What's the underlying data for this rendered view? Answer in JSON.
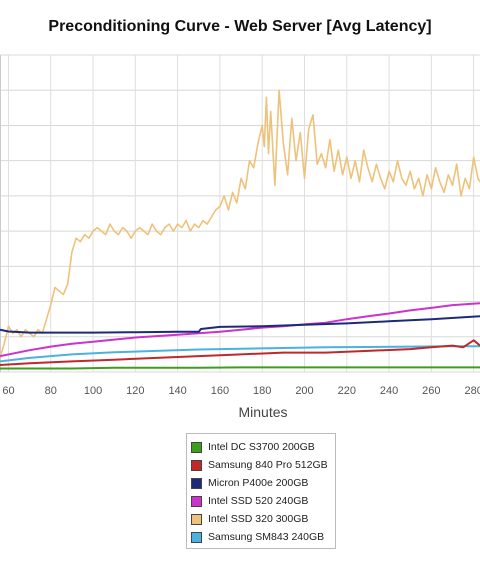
{
  "chart_data": {
    "type": "line",
    "title": "Preconditioning Curve - Web Server [Avg Latency]",
    "xlabel": "Minutes",
    "ylabel": "",
    "xlim": [
      56,
      283
    ],
    "ylim": [
      0,
      9
    ],
    "x_ticks": [
      60,
      80,
      100,
      120,
      140,
      160,
      180,
      200,
      220,
      240,
      260,
      280
    ],
    "grid": true,
    "legend_position": "bottom",
    "series": [
      {
        "name": "Intel DC S3700 200GB",
        "color": "#3d9e1c",
        "x": [
          56,
          70,
          90,
          110,
          130,
          150,
          170,
          190,
          210,
          230,
          250,
          270,
          283
        ],
        "y": [
          0.1,
          0.1,
          0.1,
          0.12,
          0.12,
          0.12,
          0.13,
          0.13,
          0.13,
          0.13,
          0.13,
          0.13,
          0.13
        ]
      },
      {
        "name": "Samsung 840 Pro 512GB",
        "color": "#c0282a",
        "x": [
          56,
          70,
          90,
          110,
          130,
          150,
          170,
          190,
          210,
          230,
          250,
          260,
          270,
          275,
          280,
          283
        ],
        "y": [
          0.2,
          0.25,
          0.3,
          0.35,
          0.4,
          0.45,
          0.5,
          0.55,
          0.55,
          0.6,
          0.65,
          0.7,
          0.75,
          0.7,
          0.9,
          0.75
        ]
      },
      {
        "name": "Micron P400e 200GB",
        "color": "#1c2a7a",
        "x": [
          56,
          60,
          70,
          80,
          100,
          120,
          140,
          150,
          151,
          160,
          180,
          200,
          220,
          240,
          260,
          283
        ],
        "y": [
          1.2,
          1.15,
          1.12,
          1.12,
          1.12,
          1.13,
          1.14,
          1.14,
          1.22,
          1.28,
          1.3,
          1.34,
          1.38,
          1.44,
          1.5,
          1.58
        ]
      },
      {
        "name": "Intel SSD 520 240GB",
        "color": "#cc33cc",
        "x": [
          56,
          70,
          80,
          90,
          100,
          110,
          120,
          130,
          140,
          150,
          160,
          170,
          180,
          190,
          200,
          210,
          220,
          230,
          240,
          250,
          260,
          270,
          283
        ],
        "y": [
          0.45,
          0.62,
          0.72,
          0.8,
          0.86,
          0.92,
          0.98,
          1.02,
          1.06,
          1.1,
          1.14,
          1.2,
          1.26,
          1.3,
          1.35,
          1.4,
          1.5,
          1.58,
          1.66,
          1.75,
          1.82,
          1.9,
          1.95
        ]
      },
      {
        "name": "Intel SSD 320 300GB",
        "color": "#eec27a",
        "x": [
          56,
          58,
          60,
          62,
          64,
          66,
          68,
          70,
          72,
          74,
          76,
          78,
          80,
          82,
          84,
          86,
          88,
          90,
          92,
          94,
          96,
          98,
          100,
          102,
          104,
          106,
          108,
          110,
          112,
          114,
          116,
          118,
          120,
          122,
          124,
          126,
          128,
          130,
          132,
          134,
          136,
          138,
          140,
          142,
          144,
          146,
          148,
          150,
          152,
          154,
          156,
          158,
          160,
          162,
          164,
          166,
          168,
          170,
          172,
          174,
          176,
          178,
          180,
          181,
          182,
          183,
          184,
          186,
          188,
          190,
          192,
          194,
          196,
          198,
          200,
          202,
          204,
          206,
          208,
          210,
          212,
          214,
          216,
          218,
          220,
          222,
          224,
          226,
          228,
          230,
          232,
          234,
          236,
          238,
          240,
          242,
          244,
          246,
          248,
          250,
          252,
          254,
          256,
          258,
          260,
          262,
          264,
          266,
          268,
          270,
          272,
          274,
          276,
          278,
          280,
          282,
          283
        ],
        "y": [
          0.4,
          0.8,
          1.3,
          1.1,
          1.2,
          1.0,
          1.2,
          1.1,
          1.0,
          1.2,
          1.1,
          1.5,
          1.9,
          2.4,
          2.3,
          2.2,
          2.5,
          3.4,
          3.8,
          3.7,
          3.9,
          3.8,
          4.0,
          4.1,
          4.0,
          3.9,
          4.2,
          4.0,
          3.9,
          4.1,
          4.0,
          3.8,
          4.0,
          4.1,
          4.0,
          3.9,
          4.2,
          4.0,
          3.9,
          4.1,
          4.2,
          4.0,
          4.2,
          4.1,
          4.3,
          4.0,
          4.2,
          4.1,
          4.3,
          4.2,
          4.4,
          4.6,
          4.7,
          5.0,
          4.6,
          5.1,
          4.8,
          5.5,
          5.2,
          6.0,
          5.8,
          6.5,
          7.0,
          6.4,
          7.8,
          6.2,
          7.4,
          5.3,
          8.0,
          6.5,
          5.6,
          7.2,
          6.0,
          6.8,
          5.5,
          6.9,
          7.3,
          5.9,
          6.2,
          5.8,
          6.6,
          5.7,
          6.3,
          5.6,
          6.1,
          5.5,
          6.0,
          5.4,
          6.3,
          5.8,
          5.4,
          5.9,
          5.5,
          5.2,
          5.7,
          5.4,
          6.0,
          5.5,
          5.3,
          5.7,
          5.2,
          5.5,
          5.0,
          5.6,
          5.2,
          5.8,
          5.4,
          5.1,
          5.6,
          5.3,
          5.9,
          5.0,
          5.5,
          5.2,
          6.1,
          5.5,
          5.4
        ]
      },
      {
        "name": "Samsung SM843 240GB",
        "color": "#4ab2e0",
        "x": [
          56,
          70,
          90,
          110,
          130,
          150,
          170,
          190,
          210,
          230,
          250,
          270,
          283
        ],
        "y": [
          0.3,
          0.4,
          0.5,
          0.56,
          0.6,
          0.64,
          0.66,
          0.68,
          0.7,
          0.71,
          0.72,
          0.73,
          0.73
        ]
      }
    ]
  }
}
